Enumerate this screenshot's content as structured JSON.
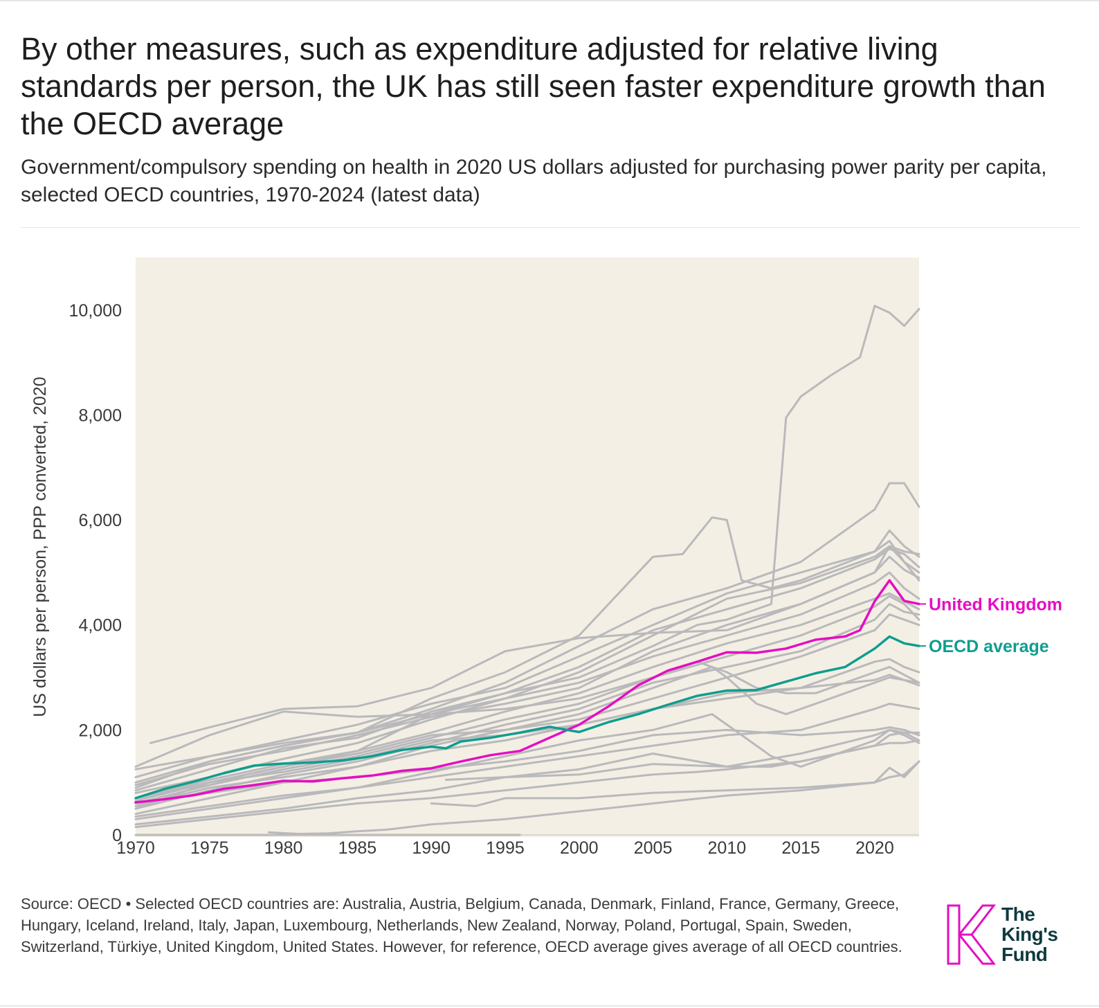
{
  "title": "By other measures, such as expenditure adjusted for relative living standards per person, the UK has still seen faster expenditure growth than the OECD average",
  "subtitle": "Government/compulsory spending on health in 2020 US dollars adjusted for purchasing power parity per capita, selected OECD countries, 1970-2024 (latest data)",
  "source": "Source: OECD • Selected OECD countries are: Australia, Austria, Belgium, Canada, Denmark, Finland, France, Germany, Greece, Hungary, Iceland, Ireland, Italy, Japan, Luxembourg, Netherlands, New Zealand, Norway, Poland, Portugal, Spain, Sweden, Switzerland, Türkiye, United Kingdom, United States. However, for reference, OECD average gives average of all OECD countries.",
  "logo": {
    "line1": "The",
    "line2": "King's",
    "line3": "Fund",
    "icon": "kings-fund-k-logo",
    "color": "#e40ec2"
  },
  "colors": {
    "background": "#f4efe4",
    "other": "#b9b9bc",
    "uk": "#e40ec2",
    "oecd": "#0f9d8f"
  },
  "chart_data": {
    "type": "line",
    "title": "",
    "xlabel": "",
    "ylabel": "US dollars per person, PPP converted, 2020",
    "xlim": [
      1970,
      2023
    ],
    "ylim": [
      0,
      11000
    ],
    "x_ticks": [
      1970,
      1975,
      1980,
      1985,
      1990,
      1995,
      2000,
      2005,
      2010,
      2015,
      2020
    ],
    "y_ticks": [
      0,
      2000,
      4000,
      6000,
      8000,
      10000
    ],
    "y_tick_labels": [
      "0",
      "2,000",
      "4,000",
      "6,000",
      "8,000",
      "10,000"
    ],
    "grid": false,
    "highlighted": [
      {
        "name": "United Kingdom",
        "color": "#e40ec2",
        "x": [
          1970,
          1972,
          1974,
          1976,
          1978,
          1980,
          1982,
          1984,
          1986,
          1988,
          1990,
          1992,
          1994,
          1996,
          1998,
          2000,
          2002,
          2004,
          2006,
          2008,
          2010,
          2012,
          2014,
          2016,
          2018,
          2019,
          2020,
          2021,
          2022,
          2023
        ],
        "y": [
          620,
          680,
          760,
          880,
          950,
          1030,
          1020,
          1080,
          1130,
          1220,
          1270,
          1400,
          1520,
          1600,
          1850,
          2100,
          2450,
          2850,
          3130,
          3300,
          3480,
          3470,
          3550,
          3720,
          3780,
          3900,
          4450,
          4850,
          4460,
          4400
        ]
      },
      {
        "name": "OECD average",
        "color": "#0f9d8f",
        "x": [
          1970,
          1972,
          1974,
          1976,
          1978,
          1980,
          1982,
          1984,
          1986,
          1988,
          1990,
          1991,
          1992,
          1994,
          1996,
          1998,
          2000,
          2002,
          2004,
          2006,
          2008,
          2010,
          2012,
          2014,
          2016,
          2018,
          2020,
          2021,
          2022,
          2023
        ],
        "y": [
          700,
          880,
          1020,
          1180,
          1320,
          1360,
          1380,
          1420,
          1500,
          1620,
          1680,
          1650,
          1780,
          1850,
          1950,
          2060,
          1960,
          2150,
          2300,
          2480,
          2650,
          2750,
          2760,
          2920,
          3080,
          3200,
          3550,
          3780,
          3650,
          3600
        ]
      }
    ],
    "series": [
      {
        "x": [
          1970,
          1975,
          1980,
          1985,
          1990,
          1995,
          2000,
          2005,
          2008,
          2010,
          2012,
          2013,
          2014,
          2015,
          2017,
          2019,
          2020,
          2021,
          2022,
          2023
        ],
        "y": [
          1000,
          1400,
          1700,
          1950,
          2300,
          2700,
          3000,
          3600,
          4000,
          4100,
          4300,
          4400,
          7950,
          8350,
          8750,
          9100,
          10080,
          9950,
          9700,
          10020
        ]
      },
      {
        "x": [
          1970,
          1975,
          1980,
          1985,
          1990,
          1995,
          2000,
          2005,
          2010,
          2015,
          2020,
          2021,
          2022,
          2023
        ],
        "y": [
          1250,
          1500,
          1750,
          1950,
          2400,
          2900,
          3600,
          4300,
          4700,
          5200,
          6200,
          6700,
          6700,
          6250
        ]
      },
      {
        "x": [
          1970,
          1975,
          1980,
          1985,
          1990,
          1995,
          2000,
          2003,
          2005,
          2007,
          2009,
          2010,
          2011,
          2013,
          2015,
          2020,
          2021,
          2022,
          2023
        ],
        "y": [
          900,
          1400,
          1700,
          1950,
          2600,
          3100,
          3800,
          4700,
          5300,
          5350,
          6050,
          6000,
          4850,
          4700,
          4850,
          5400,
          5800,
          5500,
          5300
        ]
      },
      {
        "x": [
          1971,
          1975,
          1980,
          1985,
          1990,
          1995,
          2000,
          2005,
          2010,
          2015,
          2020,
          2021,
          2022,
          2023
        ],
        "y": [
          1750,
          2050,
          2400,
          2450,
          2800,
          3500,
          3750,
          3850,
          3900,
          4400,
          5000,
          5500,
          5200,
          5000
        ]
      },
      {
        "x": [
          1970,
          1975,
          1980,
          1985,
          1990,
          1995,
          2000,
          2005,
          2010,
          2015,
          2020,
          2021,
          2022,
          2023
        ],
        "y": [
          1300,
          1900,
          2350,
          2250,
          2300,
          2600,
          3100,
          3800,
          4500,
          4800,
          5300,
          5500,
          5400,
          5350
        ]
      },
      {
        "x": [
          1970,
          1975,
          1980,
          1985,
          1990,
          1995,
          2000,
          2005,
          2010,
          2015,
          2020,
          2021,
          2022,
          2023
        ],
        "y": [
          1100,
          1500,
          1800,
          2100,
          2500,
          2800,
          3400,
          4000,
          4600,
          5000,
          5400,
          5600,
          5200,
          4850
        ]
      },
      {
        "x": [
          1970,
          1975,
          1980,
          1985,
          1990,
          1995,
          2000,
          2005,
          2010,
          2015,
          2020,
          2021,
          2022,
          2023
        ],
        "y": [
          850,
          1250,
          1650,
          1850,
          2350,
          2700,
          3200,
          3900,
          4300,
          4700,
          5250,
          5450,
          5350,
          5100
        ]
      },
      {
        "x": [
          1970,
          1975,
          1980,
          1985,
          1990,
          1995,
          2000,
          2005,
          2010,
          2015,
          2020,
          2021,
          2022,
          2023
        ],
        "y": [
          950,
          1350,
          1600,
          1900,
          2250,
          2500,
          2800,
          3500,
          4000,
          4400,
          5000,
          5300,
          5050,
          4900
        ]
      },
      {
        "x": [
          1970,
          1975,
          1980,
          1985,
          1990,
          1995,
          2000,
          2005,
          2010,
          2015,
          2020,
          2021,
          2022,
          2023
        ],
        "y": [
          800,
          1100,
          1450,
          1750,
          2200,
          2600,
          2900,
          3400,
          3800,
          4200,
          4800,
          5000,
          4700,
          4500
        ]
      },
      {
        "x": [
          1970,
          1975,
          1980,
          1985,
          1990,
          1995,
          2000,
          2005,
          2010,
          2015,
          2020,
          2021,
          2022,
          2023
        ],
        "y": [
          700,
          1050,
          1350,
          1600,
          1950,
          2350,
          2700,
          3200,
          3650,
          4000,
          4500,
          4600,
          4450,
          4300
        ]
      },
      {
        "x": [
          1970,
          1975,
          1980,
          1985,
          1990,
          1995,
          2000,
          2005,
          2010,
          2015,
          2020,
          2021,
          2022,
          2023
        ],
        "y": [
          600,
          950,
          1250,
          1500,
          1850,
          2200,
          2500,
          3000,
          3400,
          3800,
          4350,
          4550,
          4400,
          4100
        ]
      },
      {
        "x": [
          1970,
          1975,
          1980,
          1985,
          1990,
          1995,
          2000,
          2005,
          2010,
          2015,
          2020,
          2021,
          2022,
          2023
        ],
        "y": [
          500,
          850,
          1150,
          1400,
          1750,
          2100,
          2400,
          2900,
          3200,
          3500,
          4100,
          4400,
          4250,
          4200
        ]
      },
      {
        "x": [
          1970,
          1975,
          1980,
          1985,
          1990,
          1995,
          2000,
          2005,
          2010,
          2015,
          2020,
          2021,
          2022,
          2023
        ],
        "y": [
          650,
          1000,
          1300,
          1550,
          1900,
          2000,
          2200,
          2600,
          3000,
          3400,
          3900,
          4200,
          4100,
          4000
        ]
      },
      {
        "x": [
          1970,
          1975,
          1980,
          1985,
          1990,
          1995,
          2000,
          2005,
          2008,
          2010,
          2012,
          2014,
          2016,
          2020,
          2021,
          2022,
          2023
        ],
        "y": [
          500,
          1000,
          1300,
          1600,
          2300,
          2400,
          2600,
          3000,
          3300,
          3100,
          2800,
          2700,
          2700,
          3100,
          3200,
          3050,
          2900
        ]
      },
      {
        "x": [
          1970,
          1975,
          1980,
          1985,
          1990,
          1995,
          2000,
          2005,
          2009,
          2010,
          2012,
          2014,
          2016,
          2020,
          2021,
          2022,
          2023
        ],
        "y": [
          400,
          700,
          1000,
          1300,
          1700,
          2000,
          2300,
          2800,
          3200,
          3000,
          2500,
          2300,
          2500,
          2900,
          3000,
          2950,
          2850
        ]
      },
      {
        "x": [
          1970,
          1975,
          1980,
          1985,
          1990,
          1995,
          2000,
          2005,
          2010,
          2015,
          2020,
          2021,
          2022,
          2023
        ],
        "y": [
          700,
          1000,
          1200,
          1450,
          1800,
          1900,
          2100,
          2400,
          2700,
          2800,
          2950,
          3050,
          2950,
          2900
        ]
      },
      {
        "x": [
          1970,
          1975,
          1980,
          1985,
          1990,
          1995,
          2000,
          2005,
          2009,
          2011,
          2013,
          2015,
          2020,
          2021,
          2022,
          2023
        ],
        "y": [
          300,
          500,
          700,
          900,
          1200,
          1500,
          1800,
          2000,
          2300,
          1900,
          1500,
          1300,
          1800,
          2000,
          1950,
          1950
        ]
      },
      {
        "x": [
          1970,
          1975,
          1980,
          1985,
          1990,
          1995,
          2000,
          2005,
          2010,
          2015,
          2020,
          2021,
          2022,
          2023
        ],
        "y": [
          350,
          550,
          750,
          900,
          1100,
          1300,
          1500,
          1700,
          1900,
          2000,
          2400,
          2500,
          2450,
          2400
        ]
      },
      {
        "x": [
          1970,
          1975,
          1980,
          1985,
          1990,
          1995,
          2000,
          2005,
          2010,
          2015,
          2020,
          2021,
          2022,
          2023
        ],
        "y": [
          600,
          800,
          1000,
          1100,
          1250,
          1400,
          1600,
          1900,
          2000,
          1900,
          2000,
          2050,
          2000,
          1900
        ]
      },
      {
        "x": [
          1991,
          1995,
          2000,
          2005,
          2010,
          2013,
          2015,
          2020,
          2021,
          2022,
          2023
        ],
        "y": [
          1050,
          1100,
          1150,
          1350,
          1300,
          1300,
          1400,
          1700,
          1750,
          1750,
          1800
        ]
      },
      {
        "x": [
          1990,
          1993,
          1995,
          2000,
          2005,
          2010,
          2015,
          2020,
          2021,
          2022,
          2023
        ],
        "y": [
          600,
          550,
          700,
          700,
          800,
          850,
          900,
          1000,
          1100,
          1150,
          1400
        ]
      },
      {
        "x": [
          1970,
          1975,
          1980,
          1985,
          1990,
          1995,
          2000,
          2005,
          2008,
          2010,
          2015,
          2020,
          2021,
          2022,
          2023
        ],
        "y": [
          150,
          300,
          450,
          600,
          700,
          850,
          1000,
          1150,
          1200,
          1250,
          1400,
          1700,
          1900,
          1950,
          1800
        ]
      },
      {
        "x": [
          1970,
          1975,
          1980,
          1985,
          1990,
          1995,
          2000,
          2005,
          2010,
          2015,
          2020,
          2021,
          2022,
          2023
        ],
        "y": [
          200,
          350,
          500,
          700,
          850,
          1100,
          1250,
          1550,
          1300,
          1550,
          1900,
          2000,
          1900,
          1750
        ]
      },
      {
        "x": [
          1979,
          1981,
          1983,
          1985,
          1987,
          1990,
          1995,
          2000,
          2005,
          2010,
          2015,
          2020,
          2021,
          2022,
          2023
        ],
        "y": [
          50,
          20,
          30,
          70,
          100,
          200,
          300,
          450,
          600,
          750,
          850,
          1000,
          1280,
          1100,
          1400
        ]
      },
      {
        "x": [
          1970,
          1975,
          1980,
          1985,
          1990,
          1995,
          1996
        ],
        "y": [
          0,
          0,
          0,
          0,
          0,
          0,
          0
        ]
      },
      {
        "x": [
          1970,
          1975,
          1980,
          1985,
          1990,
          1995,
          2000,
          2005,
          2010,
          2015,
          2020,
          2021,
          2022,
          2023
        ],
        "y": [
          550,
          900,
          1100,
          1300,
          1600,
          1800,
          2100,
          2400,
          2600,
          2800,
          3300,
          3350,
          3200,
          3100
        ]
      }
    ]
  }
}
